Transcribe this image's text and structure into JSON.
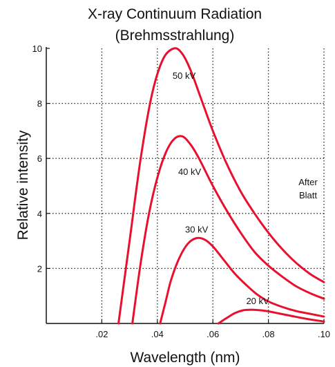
{
  "chart_data": {
    "type": "line",
    "title_line1": "X-ray Continuum Radiation",
    "title_line2": "(Brehmsstrahlung)",
    "xlabel": "Wavelength (nm)",
    "ylabel": "Relative intensity",
    "xlim": [
      0,
      0.1
    ],
    "ylim": [
      0,
      10
    ],
    "xticks": [
      0.02,
      0.04,
      0.06,
      0.08,
      0.1
    ],
    "xtick_labels": [
      ".02",
      ".04",
      ".06",
      ".08",
      ".10"
    ],
    "yticks": [
      2,
      4,
      6,
      8,
      10
    ],
    "ytick_labels": [
      "2",
      "4",
      "6",
      "8",
      "10"
    ],
    "grid": "dotted",
    "line_color": "#e8102e",
    "series": [
      {
        "name": "50 kV",
        "x": [
          0.026,
          0.03,
          0.034,
          0.038,
          0.042,
          0.046,
          0.049,
          0.052,
          0.056,
          0.06,
          0.065,
          0.07,
          0.075,
          0.08,
          0.085,
          0.09,
          0.095,
          0.1
        ],
        "y": [
          0,
          3.0,
          6.0,
          8.3,
          9.6,
          10.0,
          9.8,
          9.2,
          8.1,
          7.0,
          5.8,
          4.8,
          4.0,
          3.3,
          2.7,
          2.2,
          1.8,
          1.5
        ]
      },
      {
        "name": "40 kV",
        "x": [
          0.031,
          0.034,
          0.037,
          0.04,
          0.043,
          0.046,
          0.049,
          0.052,
          0.055,
          0.06,
          0.065,
          0.07,
          0.075,
          0.08,
          0.085,
          0.09,
          0.095,
          0.1
        ],
        "y": [
          0,
          2.2,
          4.0,
          5.3,
          6.2,
          6.7,
          6.8,
          6.5,
          6.0,
          5.0,
          4.1,
          3.3,
          2.6,
          2.1,
          1.7,
          1.35,
          1.1,
          0.9
        ]
      },
      {
        "name": "30 kV",
        "x": [
          0.041,
          0.043,
          0.045,
          0.048,
          0.051,
          0.054,
          0.057,
          0.06,
          0.064,
          0.068,
          0.072,
          0.076,
          0.08,
          0.085,
          0.09,
          0.095,
          0.1
        ],
        "y": [
          0,
          0.8,
          1.6,
          2.4,
          2.9,
          3.1,
          3.05,
          2.8,
          2.3,
          1.8,
          1.4,
          1.05,
          0.8,
          0.6,
          0.45,
          0.35,
          0.25
        ]
      },
      {
        "name": "20 kV",
        "x": [
          0.062,
          0.065,
          0.068,
          0.071,
          0.074,
          0.077,
          0.08,
          0.084,
          0.088,
          0.092,
          0.096,
          0.1
        ],
        "y": [
          0,
          0.2,
          0.38,
          0.48,
          0.5,
          0.48,
          0.44,
          0.36,
          0.28,
          0.2,
          0.13,
          0.07
        ]
      }
    ],
    "curve_labels": [
      {
        "text": "50 kV",
        "x": 0.0455,
        "y": 8.9
      },
      {
        "text": "40 kV",
        "x": 0.0475,
        "y": 5.4
      },
      {
        "text": "30 kV",
        "x": 0.05,
        "y": 3.3
      },
      {
        "text": "20 kV",
        "x": 0.072,
        "y": 0.7
      }
    ],
    "annotation_line1": "After",
    "annotation_line2": "Blatt"
  }
}
